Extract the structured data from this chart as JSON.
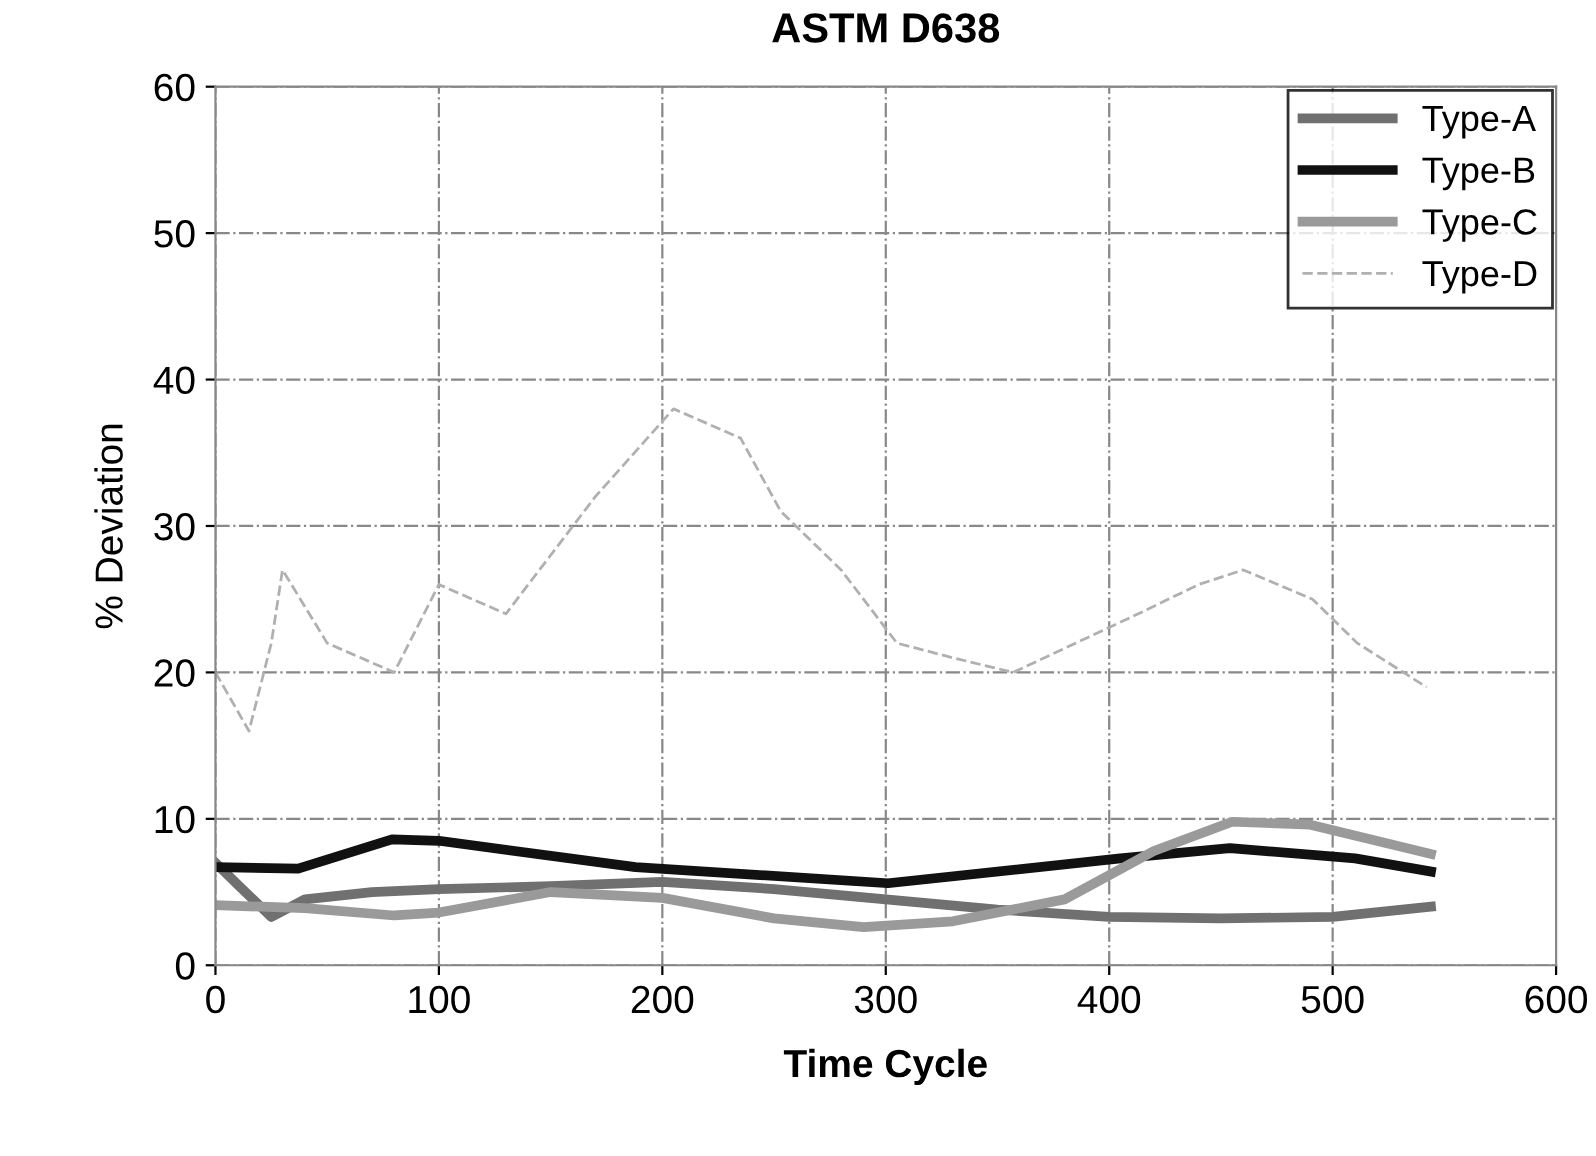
{
  "chart_data": {
    "type": "line",
    "title": "ASTM D638",
    "xlabel": "Time Cycle",
    "ylabel": "% Deviation",
    "xlim": [
      0,
      600
    ],
    "ylim": [
      0,
      60
    ],
    "xticks": [
      0,
      100,
      200,
      300,
      400,
      500,
      600
    ],
    "yticks": [
      0,
      10,
      20,
      30,
      40,
      50,
      60
    ],
    "grid": true,
    "legend": "top right",
    "marker": "none",
    "series": [
      {
        "name": "Type-A",
        "color": "#707070",
        "line_style": "solid",
        "x": [
          0,
          10,
          25,
          40,
          70,
          100,
          150,
          200,
          250,
          300,
          350,
          400,
          450,
          500,
          544
        ],
        "values": [
          7,
          5.5,
          3.3,
          4.5,
          5.0,
          5.2,
          5.4,
          5.7,
          5.2,
          4.5,
          3.8,
          3.3,
          3.2,
          3.3,
          4.0
        ]
      },
      {
        "name": "Type-B",
        "color": "#111111",
        "line_style": "solid",
        "x": [
          0,
          37,
          79,
          100,
          188,
          301,
          405,
          454,
          510,
          544
        ],
        "values": [
          6.7,
          6.6,
          8.6,
          8.5,
          6.7,
          5.6,
          7.3,
          8.0,
          7.3,
          6.4
        ]
      },
      {
        "name": "Type-C",
        "color": "#9a9a9a",
        "line_style": "solid",
        "x": [
          0,
          40,
          80,
          100,
          150,
          200,
          250,
          290,
          330,
          380,
          420,
          455,
          490,
          544
        ],
        "values": [
          4.1,
          3.9,
          3.4,
          3.6,
          5.0,
          4.6,
          3.2,
          2.6,
          3.0,
          4.5,
          7.8,
          9.8,
          9.6,
          7.6
        ]
      },
      {
        "name": "Type-D",
        "color": "#b0b0b0",
        "line_style": "dashed",
        "x": [
          0,
          15,
          25,
          30,
          50,
          80,
          100,
          130,
          170,
          205,
          235,
          253,
          280,
          305,
          330,
          357,
          385,
          413,
          440,
          460,
          491,
          511,
          542
        ],
        "values": [
          20,
          16,
          22,
          27,
          22,
          20,
          26,
          24,
          32,
          38,
          36,
          31,
          27,
          22,
          21,
          20,
          22,
          24,
          26,
          27,
          25,
          22,
          19
        ]
      }
    ]
  }
}
